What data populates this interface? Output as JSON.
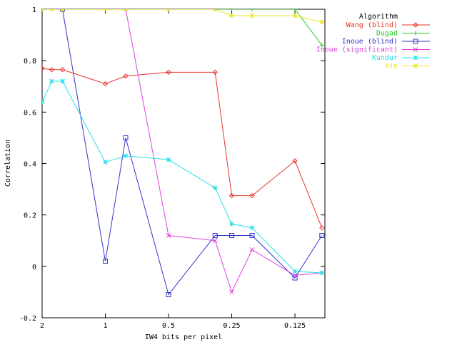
{
  "chart_data": {
    "type": "line",
    "xlabel": "IW4 bits per pixel",
    "ylabel": "Correlation",
    "x_scale": "log2-reversed",
    "xlim": [
      2,
      0.09
    ],
    "ylim": [
      -0.2,
      1
    ],
    "x_ticks": [
      {
        "value": 2,
        "label": "2"
      },
      {
        "value": 1,
        "label": "1"
      },
      {
        "value": 0.5,
        "label": "0.5"
      },
      {
        "value": 0.25,
        "label": "0.25"
      },
      {
        "value": 0.125,
        "label": "0.125"
      }
    ],
    "y_ticks": [
      {
        "value": -0.2,
        "label": "-0.2"
      },
      {
        "value": 0,
        "label": "0"
      },
      {
        "value": 0.2,
        "label": "0.2"
      },
      {
        "value": 0.4,
        "label": "0.4"
      },
      {
        "value": 0.6,
        "label": "0.6"
      },
      {
        "value": 0.8,
        "label": "0.8"
      },
      {
        "value": 1,
        "label": "1"
      }
    ],
    "grid": false,
    "legend": {
      "title": "Algorithm",
      "position": "top-right"
    },
    "x": [
      2,
      1.8,
      1.6,
      1,
      0.8,
      0.5,
      0.3,
      0.25,
      0.2,
      0.125,
      0.093
    ],
    "series": [
      {
        "name": "Wang (blind)",
        "color": "#e8322a",
        "marker": "diamond",
        "values": [
          0.77,
          0.765,
          0.765,
          0.71,
          0.74,
          0.755,
          0.755,
          0.275,
          0.275,
          0.41,
          0.15
        ]
      },
      {
        "name": "Dugad",
        "color": "#22cc22",
        "marker": "plus",
        "values": [
          1.0,
          1.0,
          1.0,
          1.0,
          1.0,
          1.0,
          1.0,
          1.0,
          1.0,
          1.0,
          0.86
        ]
      },
      {
        "name": "Inoue (blind)",
        "color": "#3333cc",
        "marker": "square",
        "values": [
          null,
          null,
          1.0,
          0.02,
          0.5,
          -0.11,
          0.12,
          0.12,
          0.12,
          -0.045,
          0.12
        ]
      },
      {
        "name": "Inoue (significant)",
        "color": "#e040e0",
        "marker": "cross",
        "values": [
          null,
          null,
          null,
          null,
          1.0,
          0.12,
          0.1,
          -0.1,
          0.065,
          -0.035,
          -0.025
        ]
      },
      {
        "name": "Kundur",
        "color": "#22e0e8",
        "marker": "star",
        "values": [
          0.64,
          0.72,
          0.72,
          0.405,
          0.43,
          0.415,
          0.305,
          0.165,
          0.15,
          -0.02,
          -0.025
        ]
      },
      {
        "name": "Xie",
        "color": "#e8e822",
        "marker": "star",
        "values": [
          1.0,
          1.0,
          1.0,
          1.0,
          1.0,
          1.0,
          1.0,
          0.975,
          0.975,
          0.975,
          0.95
        ]
      }
    ]
  }
}
